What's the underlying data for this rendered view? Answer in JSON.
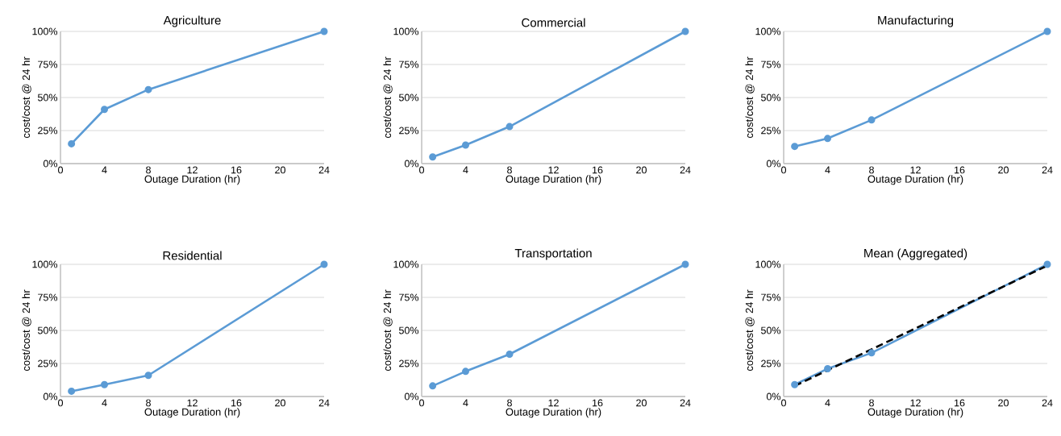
{
  "chart_data": [
    {
      "type": "line",
      "title": "Agriculture",
      "xlabel": "Outage Duration (hr)",
      "ylabel": "cost/cost @ 24 hr",
      "x": [
        1,
        4,
        8,
        24
      ],
      "xlim": [
        0,
        24
      ],
      "xticks": [
        0,
        4,
        8,
        12,
        16,
        20,
        24
      ],
      "ylim": [
        0,
        100
      ],
      "yticks": [
        {
          "value": 0,
          "label": "0%"
        },
        {
          "value": 25,
          "label": "25%"
        },
        {
          "value": 50,
          "label": "50%"
        },
        {
          "value": 75,
          "label": "75%"
        },
        {
          "value": 100,
          "label": "100%"
        }
      ],
      "grid": "y",
      "marker": "circle",
      "series": [
        {
          "color": "#5b9bd5",
          "values": [
            15,
            41,
            56,
            100
          ]
        }
      ]
    },
    {
      "type": "line",
      "title": "Commercial",
      "xlabel": "Outage Duration (hr)",
      "ylabel": "cost/cost @ 24 hr",
      "x": [
        1,
        4,
        8,
        24
      ],
      "xlim": [
        0,
        24
      ],
      "xticks": [
        0,
        4,
        8,
        12,
        16,
        20,
        24
      ],
      "ylim": [
        0,
        100
      ],
      "yticks": [
        {
          "value": 0,
          "label": "0%"
        },
        {
          "value": 25,
          "label": "25%"
        },
        {
          "value": 50,
          "label": "50%"
        },
        {
          "value": 75,
          "label": "75%"
        },
        {
          "value": 100,
          "label": "100%"
        }
      ],
      "grid": "y",
      "marker": "circle",
      "series": [
        {
          "color": "#5b9bd5",
          "values": [
            5,
            14,
            28,
            100
          ]
        }
      ]
    },
    {
      "type": "line",
      "title": "Manufacturing",
      "xlabel": "Outage Duration (hr)",
      "ylabel": "cost/cost @ 24 hr",
      "x": [
        1,
        4,
        8,
        24
      ],
      "xlim": [
        0,
        24
      ],
      "xticks": [
        0,
        4,
        8,
        12,
        16,
        20,
        24
      ],
      "ylim": [
        0,
        100
      ],
      "yticks": [
        {
          "value": 0,
          "label": "0%"
        },
        {
          "value": 25,
          "label": "25%"
        },
        {
          "value": 50,
          "label": "50%"
        },
        {
          "value": 75,
          "label": "75%"
        },
        {
          "value": 100,
          "label": "100%"
        }
      ],
      "grid": "y",
      "marker": "circle",
      "series": [
        {
          "color": "#5b9bd5",
          "values": [
            13,
            19,
            33,
            100
          ]
        }
      ]
    },
    {
      "type": "line",
      "title": "Residential",
      "xlabel": "Outage Duration (hr)",
      "ylabel": "cost/cost @ 24 hr",
      "x": [
        1,
        4,
        8,
        24
      ],
      "xlim": [
        0,
        24
      ],
      "xticks": [
        0,
        4,
        8,
        12,
        16,
        20,
        24
      ],
      "ylim": [
        0,
        100
      ],
      "yticks": [
        {
          "value": 0,
          "label": "0%"
        },
        {
          "value": 25,
          "label": "25%"
        },
        {
          "value": 50,
          "label": "50%"
        },
        {
          "value": 75,
          "label": "75%"
        },
        {
          "value": 100,
          "label": "100%"
        }
      ],
      "grid": "y",
      "marker": "circle",
      "series": [
        {
          "color": "#5b9bd5",
          "values": [
            4,
            9,
            16,
            100
          ]
        }
      ]
    },
    {
      "type": "line",
      "title": "Transportation",
      "xlabel": "Outage Duration (hr)",
      "ylabel": "cost/cost @ 24 hr",
      "x": [
        1,
        4,
        8,
        24
      ],
      "xlim": [
        0,
        24
      ],
      "xticks": [
        0,
        4,
        8,
        12,
        16,
        20,
        24
      ],
      "ylim": [
        0,
        100
      ],
      "yticks": [
        {
          "value": 0,
          "label": "0%"
        },
        {
          "value": 25,
          "label": "25%"
        },
        {
          "value": 50,
          "label": "50%"
        },
        {
          "value": 75,
          "label": "75%"
        },
        {
          "value": 100,
          "label": "100%"
        }
      ],
      "grid": "y",
      "marker": "circle",
      "series": [
        {
          "color": "#5b9bd5",
          "values": [
            8,
            19,
            32,
            100
          ]
        }
      ]
    },
    {
      "type": "line",
      "title": "Mean (Aggregated)",
      "xlabel": "Outage Duration (hr)",
      "ylabel": "cost/cost @ 24 hr",
      "x": [
        1,
        4,
        8,
        24
      ],
      "xlim": [
        0,
        24
      ],
      "xticks": [
        0,
        4,
        8,
        12,
        16,
        20,
        24
      ],
      "ylim": [
        0,
        100
      ],
      "yticks": [
        {
          "value": 0,
          "label": "0%"
        },
        {
          "value": 25,
          "label": "25%"
        },
        {
          "value": 50,
          "label": "50%"
        },
        {
          "value": 75,
          "label": "75%"
        },
        {
          "value": 100,
          "label": "100%"
        }
      ],
      "grid": "y",
      "marker": "circle",
      "series": [
        {
          "color": "#5b9bd5",
          "values": [
            9,
            21,
            33,
            100
          ]
        },
        {
          "type": "line",
          "color": "#000000",
          "x": [
            1,
            24
          ],
          "values": [
            8,
            99
          ],
          "marker": "none",
          "line_style": "dashed"
        }
      ]
    }
  ]
}
